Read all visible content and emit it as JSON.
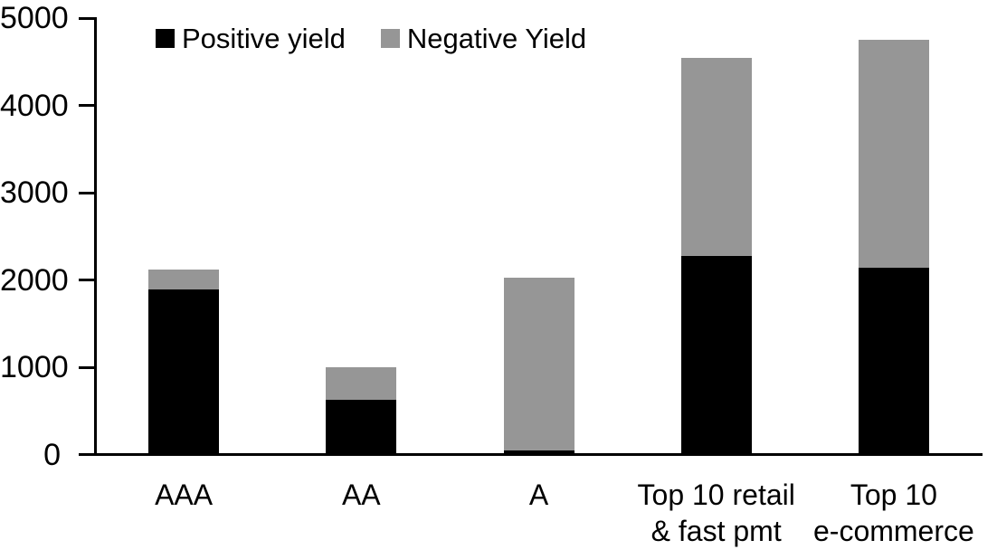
{
  "chart_data": {
    "type": "bar",
    "stacked": true,
    "title": "",
    "xlabel": "",
    "ylabel": "",
    "categories": [
      "AAA",
      "AA",
      "A",
      "Top 10 retail\n& fast pmt",
      "Top 10\ne-commerce"
    ],
    "series": [
      {
        "name": "Positive yield",
        "color": "#000000",
        "values": [
          1890,
          630,
          50,
          2275,
          2140
        ]
      },
      {
        "name": "Negative Yield",
        "color": "#969696",
        "values": [
          230,
          370,
          1980,
          2275,
          2610
        ]
      }
    ],
    "ylim": [
      0,
      5000
    ],
    "ytick_step": 1000,
    "yticks": [
      "0",
      "1000",
      "2000",
      "3000",
      "4000",
      "5000"
    ],
    "grid": false,
    "legend_position": "top-inside",
    "legend_marker": "square",
    "axis_color": "#000000",
    "background_color": "#ffffff"
  }
}
